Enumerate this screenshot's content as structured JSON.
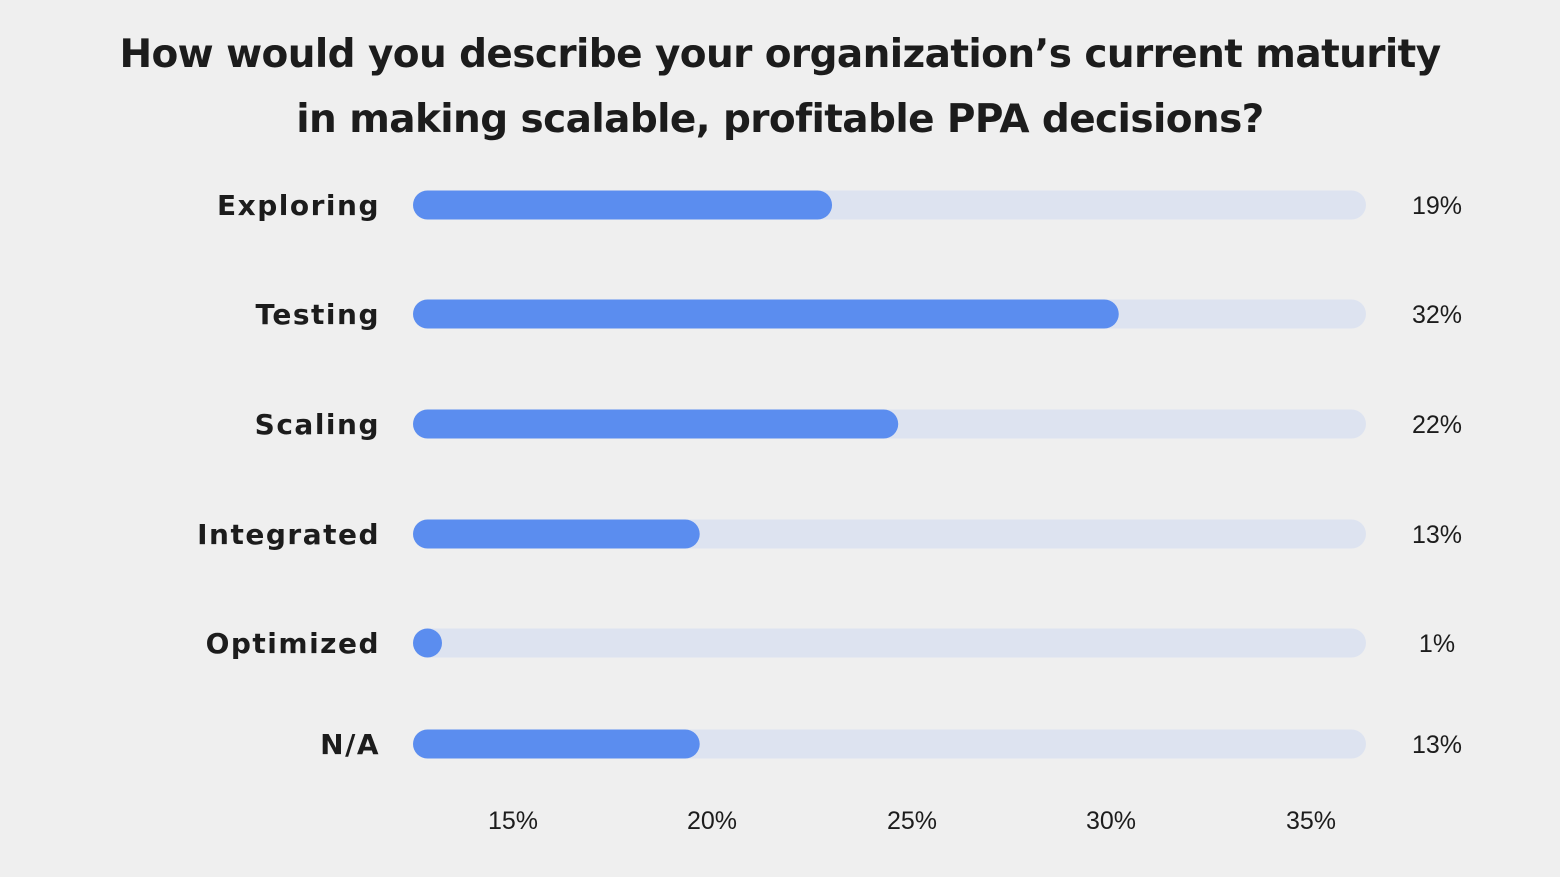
{
  "chart_data": {
    "type": "bar",
    "orientation": "horizontal",
    "title_lines": [
      "How would you describe your organization’s current maturity",
      "in making scalable, profitable PPA decisions?"
    ],
    "categories": [
      "Exploring",
      "Testing",
      "Scaling",
      "Integrated",
      "Optimized",
      "N/A"
    ],
    "values": [
      19,
      32,
      22,
      13,
      1,
      13
    ],
    "value_labels": [
      "19%",
      "32%",
      "22%",
      "13%",
      "1%",
      "13%"
    ],
    "xticks": [
      "15%",
      "20%",
      "25%",
      "30%",
      "35%"
    ],
    "xlabel": "",
    "ylabel": "",
    "grid": false,
    "legend": "none",
    "colors": {
      "bar": "#5b8def",
      "track": "#dde3f0",
      "text": "#1c1c1c",
      "background": "#efefef"
    }
  }
}
